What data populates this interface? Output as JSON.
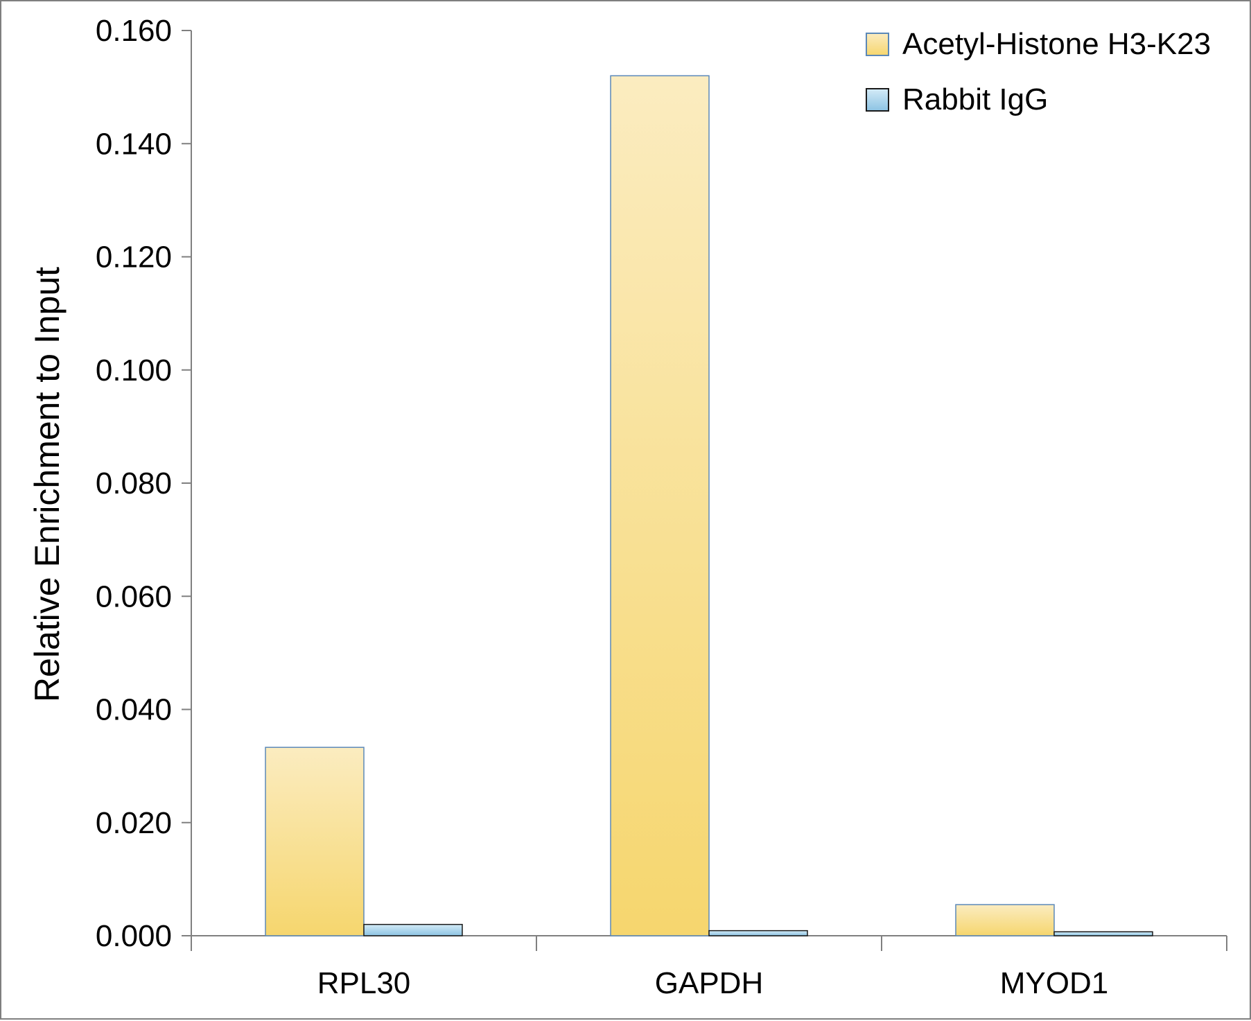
{
  "chart_data": {
    "type": "bar",
    "title": "",
    "xlabel": "",
    "ylabel": "Relative Enrichment to Input",
    "categories": [
      "RPL30",
      "GAPDH",
      "MYOD1"
    ],
    "series": [
      {
        "name": "Acetyl-Histone H3-K23",
        "values": [
          0.0333,
          0.152,
          0.0055
        ],
        "color_top": "#fbecc0",
        "color_bottom": "#f6d66e",
        "stroke": "#5b88b8"
      },
      {
        "name": "Rabbit IgG",
        "values": [
          0.002,
          0.0009,
          0.0007
        ],
        "color_top": "#d4ebf7",
        "color_bottom": "#8cc3e3",
        "stroke": "#1a1a1a"
      }
    ],
    "ylim": [
      0,
      0.16
    ],
    "yticks": [
      "0.000",
      "0.020",
      "0.040",
      "0.060",
      "0.080",
      "0.100",
      "0.120",
      "0.140",
      "0.160"
    ],
    "grid": false,
    "legend_position": "top-right",
    "axis_color": "#7f7f7f"
  }
}
